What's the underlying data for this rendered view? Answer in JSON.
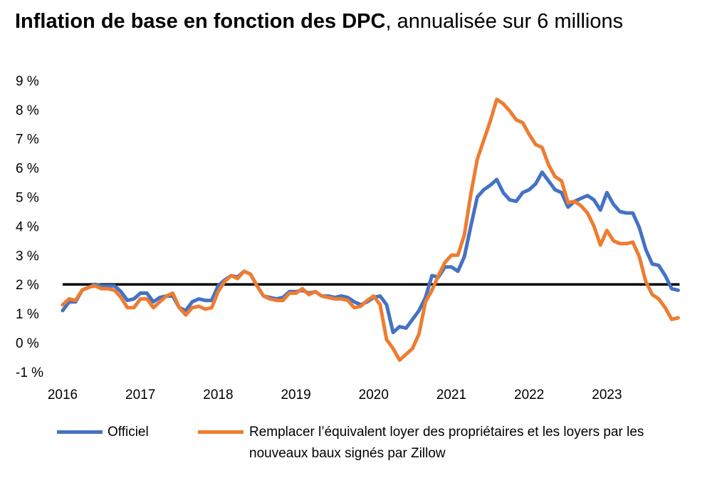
{
  "chart_data": {
    "type": "line",
    "title_bold": "Inflation de base en fonction des DPC",
    "title_rest": ", annualisée sur 6 millions",
    "xlabel": "",
    "ylabel": "",
    "ylim": [
      -1,
      9
    ],
    "yticks": [
      -1,
      0,
      1,
      2,
      3,
      4,
      5,
      6,
      7,
      8,
      9
    ],
    "ytick_labels": [
      "-1 %",
      "0 %",
      "1 %",
      "2 %",
      "3 %",
      "4 %",
      "5 %",
      "6 %",
      "7 %",
      "8 %",
      "9 %"
    ],
    "xtick_labels": [
      "2016",
      "2017",
      "2018",
      "2019",
      "2020",
      "2021",
      "2022",
      "2023"
    ],
    "x_start": "2016-01",
    "x_frequency": "monthly",
    "grid": false,
    "reference_line": {
      "value": 2,
      "color": "#000000"
    },
    "legend_position": "bottom",
    "series": [
      {
        "name": "Officiel",
        "color": "#4472C4",
        "values": [
          1.1,
          1.4,
          1.4,
          1.8,
          1.9,
          2.0,
          1.95,
          1.95,
          1.95,
          1.75,
          1.45,
          1.5,
          1.7,
          1.7,
          1.4,
          1.55,
          1.6,
          1.6,
          1.2,
          1.1,
          1.4,
          1.5,
          1.45,
          1.45,
          1.95,
          2.15,
          2.3,
          2.25,
          2.45,
          2.35,
          1.95,
          1.6,
          1.55,
          1.5,
          1.55,
          1.75,
          1.75,
          1.8,
          1.7,
          1.75,
          1.6,
          1.6,
          1.55,
          1.6,
          1.55,
          1.4,
          1.3,
          1.4,
          1.55,
          1.6,
          1.3,
          0.35,
          0.55,
          0.5,
          0.8,
          1.1,
          1.55,
          2.3,
          2.25,
          2.6,
          2.6,
          2.45,
          2.95,
          4.0,
          5.0,
          5.25,
          5.4,
          5.6,
          5.15,
          4.9,
          4.85,
          5.15,
          5.25,
          5.45,
          5.85,
          5.55,
          5.25,
          5.15,
          4.65,
          4.85,
          4.95,
          5.05,
          4.9,
          4.55,
          5.15,
          4.75,
          4.5,
          4.45,
          4.45,
          3.95,
          3.2,
          2.7,
          2.65,
          2.3,
          1.85,
          1.8
        ]
      },
      {
        "name": "Remplacer l’équivalent loyer des propriétaires et les loyers par les nouveaux baux signés par Zillow",
        "color": "#ED7D31",
        "values": [
          1.3,
          1.5,
          1.45,
          1.8,
          1.9,
          1.95,
          1.85,
          1.85,
          1.8,
          1.55,
          1.2,
          1.2,
          1.5,
          1.5,
          1.2,
          1.4,
          1.6,
          1.7,
          1.2,
          0.95,
          1.2,
          1.25,
          1.15,
          1.2,
          1.75,
          2.1,
          2.3,
          2.2,
          2.45,
          2.35,
          1.95,
          1.6,
          1.5,
          1.45,
          1.45,
          1.7,
          1.7,
          1.85,
          1.65,
          1.75,
          1.6,
          1.55,
          1.5,
          1.5,
          1.45,
          1.2,
          1.25,
          1.45,
          1.6,
          1.3,
          0.1,
          -0.2,
          -0.6,
          -0.4,
          -0.2,
          0.3,
          1.4,
          1.8,
          2.3,
          2.75,
          3.0,
          3.0,
          3.7,
          5.1,
          6.3,
          6.95,
          7.6,
          8.35,
          8.2,
          7.95,
          7.65,
          7.55,
          7.15,
          6.8,
          6.7,
          6.1,
          5.7,
          5.55,
          4.8,
          4.85,
          4.7,
          4.45,
          4.0,
          3.35,
          3.85,
          3.5,
          3.4,
          3.4,
          3.45,
          2.95,
          2.1,
          1.65,
          1.5,
          1.2,
          0.8,
          0.85
        ]
      }
    ]
  }
}
